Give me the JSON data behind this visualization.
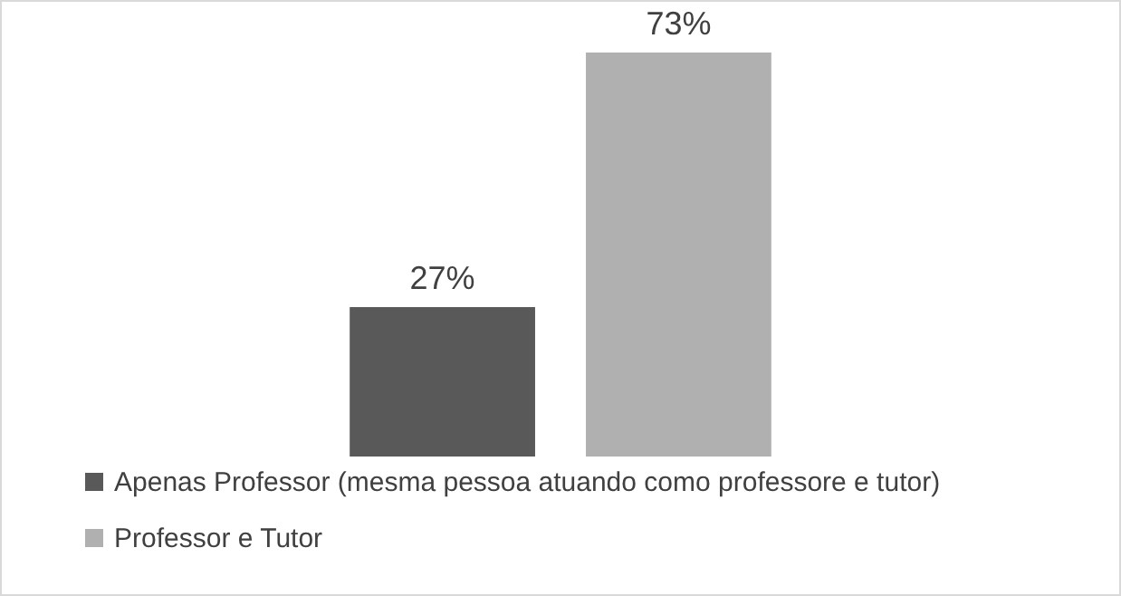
{
  "chart_data": {
    "type": "bar",
    "categories": [
      null
    ],
    "series": [
      {
        "name": "Apenas Professor (mesma pessoa atuando como professore e tutor)",
        "color": "#595959",
        "values": [
          27
        ],
        "value_labels": [
          "27%"
        ]
      },
      {
        "name": "Professor e Tutor",
        "color": "#b0b0b0",
        "values": [
          73
        ],
        "value_labels": [
          "73%"
        ]
      }
    ],
    "legend": "bottom"
  }
}
